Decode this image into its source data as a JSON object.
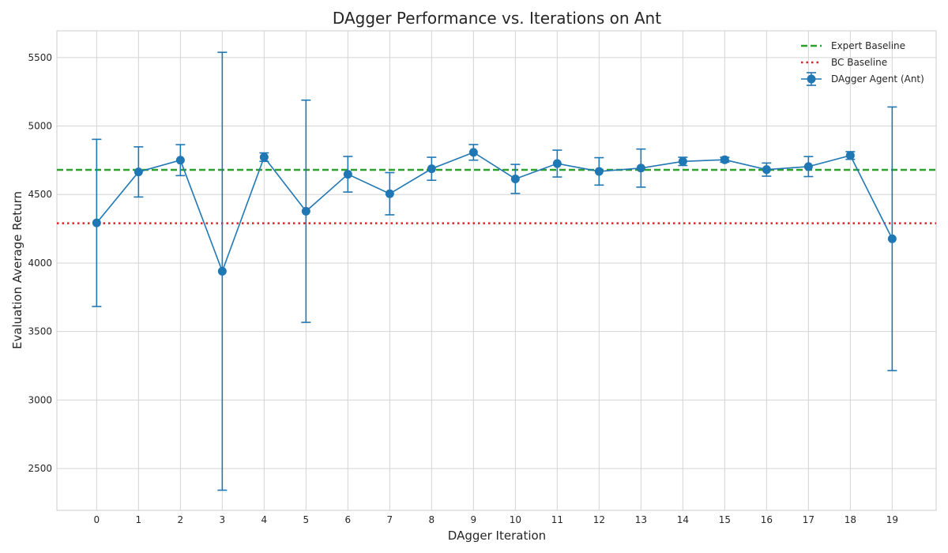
{
  "chart_data": {
    "type": "line",
    "title": "DAgger Performance vs. Iterations on Ant",
    "xlabel": "DAgger Iteration",
    "ylabel": "Evaluation Average Return",
    "x": [
      0,
      1,
      2,
      3,
      4,
      5,
      6,
      7,
      8,
      9,
      10,
      11,
      12,
      13,
      14,
      15,
      16,
      17,
      18,
      19
    ],
    "x_tick_labels": [
      "0",
      "1",
      "2",
      "3",
      "4",
      "5",
      "6",
      "7",
      "8",
      "9",
      "10",
      "11",
      "12",
      "13",
      "14",
      "15",
      "16",
      "17",
      "18",
      "19"
    ],
    "y_ticks": [
      2500,
      3000,
      3500,
      4000,
      4500,
      5000,
      5500
    ],
    "y_tick_labels": [
      "2500",
      "3000",
      "3500",
      "4000",
      "4500",
      "5000",
      "5500"
    ],
    "xlim": [
      -0.95,
      20.05
    ],
    "ylim": [
      2195,
      5695
    ],
    "grid": true,
    "legend_position": "top-right",
    "series": [
      {
        "name": "DAgger Agent (Ant)",
        "color": "#1f77b4",
        "marker": "circle",
        "y": [
          4293,
          4665,
          4751,
          3940,
          4773,
          4378,
          4648,
          4506,
          4688,
          4808,
          4614,
          4726,
          4669,
          4693,
          4742,
          4754,
          4682,
          4704,
          4785,
          4177
        ],
        "error": [
          610,
          183,
          113,
          1598,
          31,
          811,
          130,
          154,
          84,
          57,
          106,
          98,
          100,
          139,
          30,
          18,
          48,
          73,
          28,
          962
        ]
      }
    ],
    "reference_lines": [
      {
        "name": "Expert Baseline",
        "y": 4680,
        "color": "#2ca02c",
        "style": "dashed"
      },
      {
        "name": "BC Baseline",
        "y": 4290,
        "color": "#d62728",
        "style": "dotted"
      }
    ]
  }
}
